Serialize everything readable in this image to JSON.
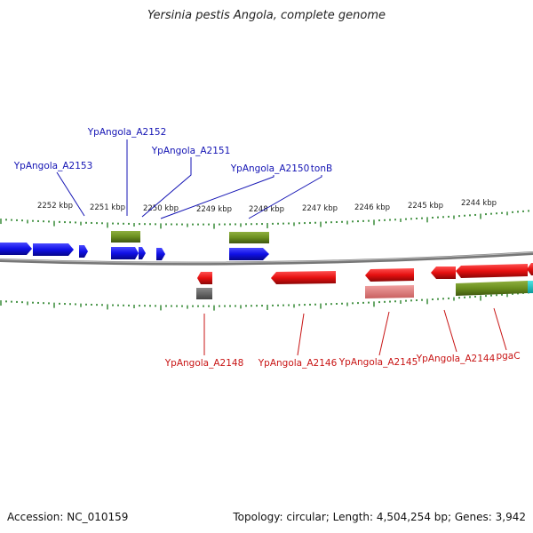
{
  "title": "Yersinia pestis Angola, complete genome",
  "footer": {
    "accession": "Accession: NC_010159",
    "stats": "Topology: circular; Length: 4,504,254 bp; Genes: 3,942"
  },
  "colors": {
    "forward_gene": "#1010e6",
    "reverse_gene": "#e61010",
    "cds_feature": "#6b8f1f",
    "pseudo_feature": "#666666",
    "pink_feature": "#e68080",
    "cyan_feature": "#16c6c6",
    "tick": "#1a7a1a",
    "backbone": "#888888",
    "label_forward": "#1414b4",
    "label_reverse": "#c81414"
  },
  "ruler": [
    {
      "label": "2252 kbp"
    },
    {
      "label": "2251 kbp"
    },
    {
      "label": "2250 kbp"
    },
    {
      "label": "2249 kbp"
    },
    {
      "label": "2248 kbp"
    },
    {
      "label": "2247 kbp"
    },
    {
      "label": "2246 kbp"
    },
    {
      "label": "2245 kbp"
    },
    {
      "label": "2244 kbp"
    }
  ],
  "top_labels": [
    {
      "name": "YpAngola_A2152"
    },
    {
      "name": "YpAngola_A2151"
    },
    {
      "name": "YpAngola_A2153"
    },
    {
      "name": "YpAngola_A2150"
    },
    {
      "name": "tonB"
    }
  ],
  "bottom_labels": [
    {
      "name": "YpAngola_A2148"
    },
    {
      "name": "YpAngola_A2146"
    },
    {
      "name": "YpAngola_A2145"
    },
    {
      "name": "YpAngola_A2144"
    },
    {
      "name": "pgaC"
    }
  ]
}
